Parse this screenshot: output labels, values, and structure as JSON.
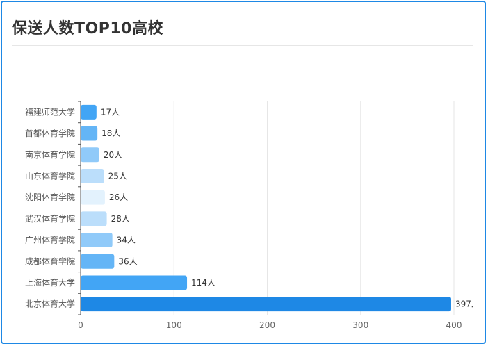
{
  "card": {
    "title": "保送人数TOP10高校"
  },
  "chart_data": {
    "type": "bar",
    "orientation": "horizontal",
    "categories": [
      "福建师范大学",
      "首都体育学院",
      "南京体育学院",
      "山东体育学院",
      "沈阳体育学院",
      "武汉体育学院",
      "广州体育学院",
      "成都体育学院",
      "上海体育大学",
      "北京体育大学"
    ],
    "values": [
      17,
      18,
      20,
      25,
      26,
      28,
      34,
      36,
      114,
      397
    ],
    "value_suffix": "人",
    "bar_colors": [
      "#42a5f5",
      "#64b5f6",
      "#90caf9",
      "#bbdefb",
      "#e3f2fd",
      "#bbdefb",
      "#90caf9",
      "#64b5f6",
      "#42a5f5",
      "#1e88e5"
    ],
    "xlim": [
      0,
      400
    ],
    "xticks": [
      0,
      100,
      200,
      300,
      400
    ],
    "grid": true
  }
}
